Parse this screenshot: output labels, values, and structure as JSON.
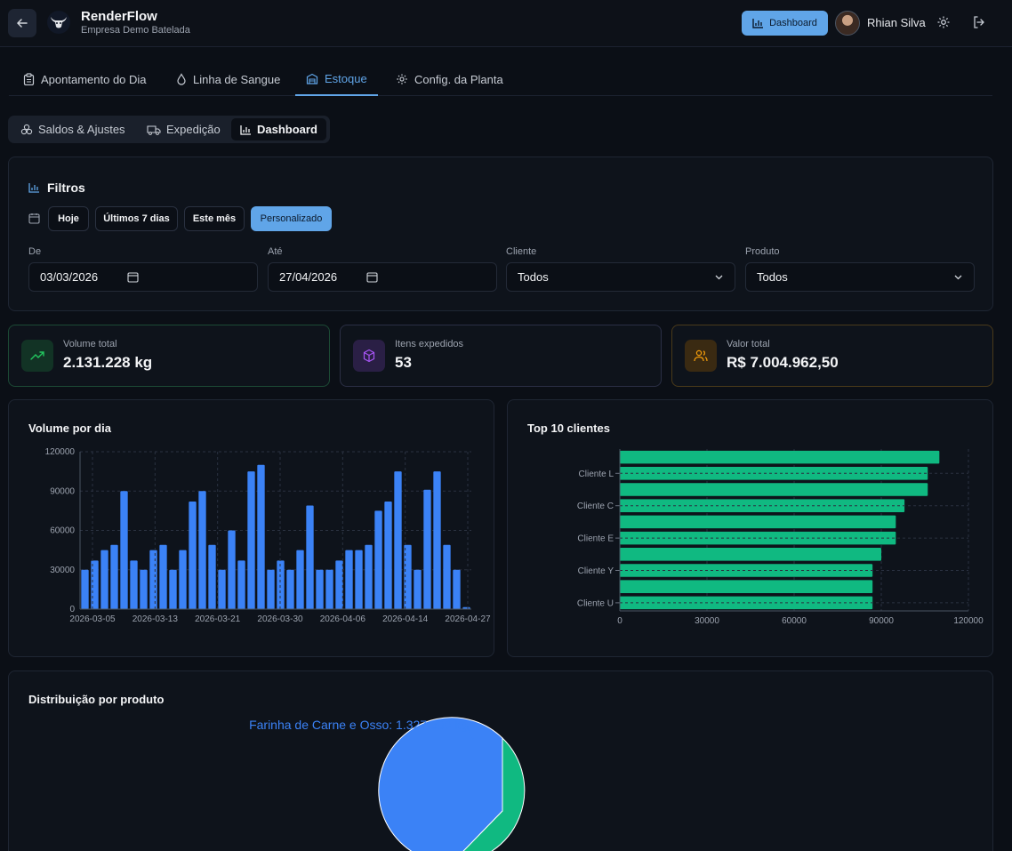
{
  "header": {
    "app_title": "RenderFlow",
    "app_subtitle": "Empresa Demo Batelada",
    "dashboard_button": "Dashboard",
    "user_name": "Rhian Silva"
  },
  "tabs": [
    {
      "label": "Apontamento do Dia",
      "icon": "clipboard-icon"
    },
    {
      "label": "Linha de Sangue",
      "icon": "drop-icon"
    },
    {
      "label": "Estoque",
      "icon": "warehouse-icon",
      "active": true
    },
    {
      "label": "Config. da Planta",
      "icon": "gear-icon"
    }
  ],
  "subtabs": [
    {
      "label": "Saldos & Ajustes",
      "icon": "boxes-icon"
    },
    {
      "label": "Expedição",
      "icon": "truck-icon"
    },
    {
      "label": "Dashboard",
      "icon": "bar-chart-icon",
      "active": true
    }
  ],
  "filters": {
    "title": "Filtros",
    "quick": [
      "Hoje",
      "Últimos 7 dias",
      "Este mês",
      "Personalizado"
    ],
    "active_quick": "Personalizado",
    "from_label": "De",
    "from_value": "03/03/2026",
    "to_label": "Até",
    "to_value": "27/04/2026",
    "client_label": "Cliente",
    "client_value": "Todos",
    "product_label": "Produto",
    "product_value": "Todos"
  },
  "stats": [
    {
      "label": "Volume total",
      "value": "2.131.228 kg",
      "color": "#22c55e"
    },
    {
      "label": "Itens expedidos",
      "value": "53",
      "color": "#a855f7"
    },
    {
      "label": "Valor total",
      "value": "R$ 7.004.962,50",
      "color": "#f59e0b"
    }
  ],
  "chart_data": [
    {
      "type": "bar",
      "title": "Volume por dia",
      "x_ticks": [
        "2026-03-05",
        "2026-03-13",
        "2026-03-21",
        "2026-03-30",
        "2026-04-06",
        "2026-04-14",
        "2026-04-27"
      ],
      "y_ticks": [
        "0",
        "30000",
        "60000",
        "90000",
        "120000"
      ],
      "ylim": [
        0,
        120000
      ],
      "color": "#3b82f6",
      "values": [
        30000,
        37000,
        45000,
        49000,
        90000,
        37000,
        30000,
        45000,
        49000,
        30000,
        45000,
        82000,
        90000,
        49000,
        30000,
        60000,
        37000,
        105000,
        110000,
        30000,
        37000,
        30000,
        45000,
        79000,
        30000,
        30000,
        37000,
        45000,
        45000,
        49000,
        75000,
        82000,
        105000,
        49000,
        30000,
        91000,
        105000,
        49000,
        30000,
        1500
      ]
    },
    {
      "type": "bar",
      "orientation": "horizontal",
      "title": "Top 10 clientes",
      "y_labels": [
        "",
        "Cliente L",
        "",
        "Cliente C",
        "",
        "Cliente E",
        "",
        "Cliente Y",
        "",
        "Cliente U"
      ],
      "x_ticks": [
        "0",
        "30000",
        "60000",
        "90000",
        "120000"
      ],
      "xlim": [
        0,
        120000
      ],
      "color": "#10b981",
      "values": [
        110000,
        106000,
        106000,
        98000,
        95000,
        95000,
        90000,
        87000,
        87000,
        87000
      ]
    },
    {
      "type": "pie",
      "title": "Distribuição por produto",
      "slices": [
        {
          "label": "Farinha de Carne e Osso: 1.327.500 kg",
          "value": 1327500,
          "color": "#3b82f6"
        },
        {
          "label": "",
          "value": 803728,
          "color": "#10b981"
        }
      ]
    }
  ]
}
